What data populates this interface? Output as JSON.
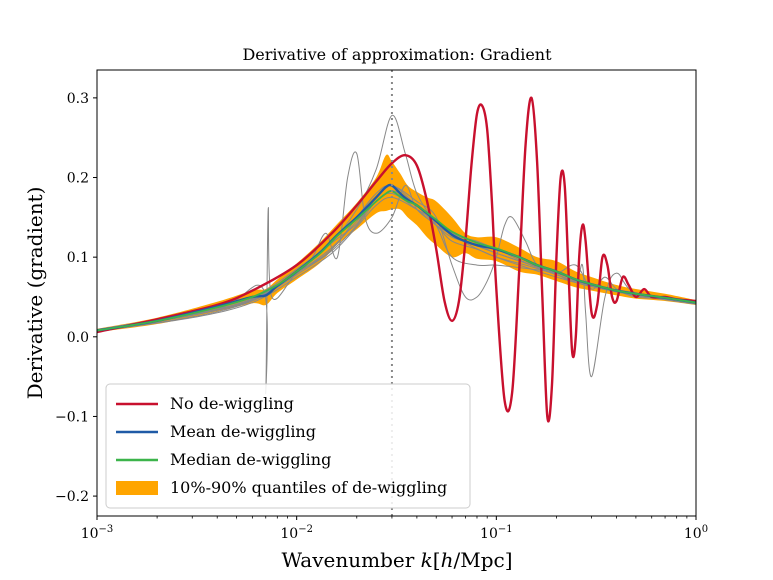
{
  "chart_data": {
    "type": "line",
    "title": "Derivative of approximation: Gradient",
    "xlabel": "Wavenumber k[h/Mpc]",
    "ylabel": "Derivative (gradient)",
    "xscale": "log",
    "xlim": [
      0.001,
      1.0
    ],
    "ylim": [
      -0.225,
      0.335
    ],
    "xticks": [
      {
        "value": 0.001,
        "base": "10",
        "exp": "−3"
      },
      {
        "value": 0.01,
        "base": "10",
        "exp": "−2"
      },
      {
        "value": 0.1,
        "base": "10",
        "exp": "−1"
      },
      {
        "value": 1.0,
        "base": "10",
        "exp": "0"
      }
    ],
    "yticks": [
      {
        "value": -0.2,
        "label": "−0.2"
      },
      {
        "value": -0.1,
        "label": "−0.1"
      },
      {
        "value": 0.0,
        "label": "0.0"
      },
      {
        "value": 0.1,
        "label": "0.1"
      },
      {
        "value": 0.2,
        "label": "0.2"
      },
      {
        "value": 0.3,
        "label": "0.3"
      }
    ],
    "vline": {
      "x": 0.03,
      "style": "dotted",
      "color": "#888888"
    },
    "legend": {
      "position": "lower-left",
      "entries": [
        {
          "label": "No de-wiggling",
          "color": "#c8102e",
          "kind": "line"
        },
        {
          "label": "Mean de-wiggling",
          "color": "#1f5aa6",
          "kind": "line"
        },
        {
          "label": "Median de-wiggling",
          "color": "#3cb44b",
          "kind": "line"
        },
        {
          "label": "10%-90% quantiles of de-wiggling",
          "color": "#ffa500",
          "kind": "patch"
        }
      ]
    },
    "series": [
      {
        "name": "No de-wiggling",
        "color": "#c8102e",
        "x": [
          0.001,
          0.002,
          0.004,
          0.006,
          0.01,
          0.015,
          0.02,
          0.025,
          0.03,
          0.035,
          0.04,
          0.045,
          0.05,
          0.055,
          0.06,
          0.065,
          0.07,
          0.075,
          0.08,
          0.085,
          0.09,
          0.095,
          0.1,
          0.11,
          0.12,
          0.13,
          0.14,
          0.15,
          0.16,
          0.17,
          0.18,
          0.19,
          0.2,
          0.21,
          0.22,
          0.23,
          0.24,
          0.25,
          0.26,
          0.27,
          0.28,
          0.3,
          0.32,
          0.34,
          0.36,
          0.38,
          0.4,
          0.43,
          0.46,
          0.5,
          0.55,
          0.6,
          0.7,
          0.8,
          1.0
        ],
        "y": [
          0.006,
          0.022,
          0.04,
          0.058,
          0.09,
          0.13,
          0.165,
          0.195,
          0.218,
          0.228,
          0.215,
          0.17,
          0.11,
          0.045,
          0.02,
          0.045,
          0.12,
          0.215,
          0.28,
          0.29,
          0.26,
          0.17,
          0.06,
          -0.08,
          -0.07,
          0.08,
          0.24,
          0.3,
          0.22,
          0.05,
          -0.1,
          -0.06,
          0.1,
          0.2,
          0.19,
          0.08,
          -0.02,
          0.0,
          0.1,
          0.14,
          0.12,
          0.03,
          0.04,
          0.1,
          0.09,
          0.05,
          0.045,
          0.075,
          0.065,
          0.05,
          0.06,
          0.05,
          0.05,
          0.047,
          0.045
        ]
      },
      {
        "name": "Mean de-wiggling",
        "color": "#1f5aa6",
        "x": [
          0.001,
          0.002,
          0.004,
          0.006,
          0.007,
          0.008,
          0.01,
          0.013,
          0.016,
          0.02,
          0.025,
          0.028,
          0.03,
          0.033,
          0.036,
          0.04,
          0.045,
          0.05,
          0.06,
          0.07,
          0.08,
          0.1,
          0.13,
          0.16,
          0.2,
          0.25,
          0.3,
          0.4,
          0.5,
          0.7,
          1.0
        ],
        "y": [
          0.008,
          0.02,
          0.038,
          0.05,
          0.052,
          0.064,
          0.082,
          0.105,
          0.128,
          0.15,
          0.175,
          0.188,
          0.19,
          0.18,
          0.172,
          0.165,
          0.155,
          0.145,
          0.128,
          0.12,
          0.115,
          0.11,
          0.1,
          0.09,
          0.082,
          0.072,
          0.066,
          0.058,
          0.054,
          0.049,
          0.043
        ]
      },
      {
        "name": "Median de-wiggling",
        "color": "#3cb44b",
        "x": [
          0.001,
          0.002,
          0.004,
          0.006,
          0.008,
          0.01,
          0.013,
          0.016,
          0.02,
          0.025,
          0.028,
          0.03,
          0.033,
          0.036,
          0.04,
          0.05,
          0.06,
          0.08,
          0.1,
          0.13,
          0.16,
          0.2,
          0.25,
          0.3,
          0.4,
          0.5,
          0.7,
          1.0
        ],
        "y": [
          0.008,
          0.02,
          0.037,
          0.05,
          0.065,
          0.082,
          0.104,
          0.127,
          0.148,
          0.17,
          0.18,
          0.183,
          0.176,
          0.17,
          0.165,
          0.147,
          0.132,
          0.118,
          0.111,
          0.1,
          0.09,
          0.082,
          0.072,
          0.066,
          0.058,
          0.054,
          0.049,
          0.043
        ]
      }
    ],
    "band": {
      "name": "10%-90% quantiles of de-wiggling",
      "color": "#ffa500",
      "x": [
        0.001,
        0.002,
        0.004,
        0.006,
        0.007,
        0.008,
        0.01,
        0.013,
        0.016,
        0.02,
        0.025,
        0.028,
        0.03,
        0.033,
        0.036,
        0.04,
        0.045,
        0.05,
        0.06,
        0.07,
        0.08,
        0.1,
        0.13,
        0.16,
        0.2,
        0.25,
        0.3,
        0.4,
        0.5,
        0.7,
        1.0
      ],
      "lower": [
        0.006,
        0.016,
        0.032,
        0.042,
        0.04,
        0.055,
        0.072,
        0.092,
        0.116,
        0.135,
        0.155,
        0.158,
        0.16,
        0.16,
        0.15,
        0.14,
        0.125,
        0.115,
        0.1,
        0.105,
        0.098,
        0.095,
        0.082,
        0.078,
        0.07,
        0.062,
        0.058,
        0.052,
        0.048,
        0.045,
        0.04
      ],
      "upper": [
        0.01,
        0.024,
        0.044,
        0.058,
        0.06,
        0.072,
        0.092,
        0.118,
        0.142,
        0.168,
        0.2,
        0.228,
        0.22,
        0.205,
        0.19,
        0.182,
        0.175,
        0.17,
        0.15,
        0.13,
        0.125,
        0.125,
        0.112,
        0.1,
        0.095,
        0.082,
        0.075,
        0.065,
        0.06,
        0.054,
        0.046
      ]
    },
    "realizations_color": "#888888",
    "realizations": [
      {
        "x": [
          0.001,
          0.003,
          0.006,
          0.01,
          0.015,
          0.02,
          0.025,
          0.03,
          0.035,
          0.04,
          0.05,
          0.06,
          0.08,
          0.1,
          0.15,
          0.2,
          0.3,
          0.5,
          1.0
        ],
        "y": [
          0.009,
          0.03,
          0.05,
          0.085,
          0.12,
          0.16,
          0.21,
          0.278,
          0.23,
          0.18,
          0.14,
          0.1,
          0.09,
          0.09,
          0.085,
          0.08,
          0.065,
          0.055,
          0.043
        ]
      },
      {
        "x": [
          0.001,
          0.003,
          0.006,
          0.01,
          0.015,
          0.02,
          0.025,
          0.03,
          0.035,
          0.04,
          0.05,
          0.06,
          0.08,
          0.1,
          0.15,
          0.2,
          0.3,
          0.5,
          1.0
        ],
        "y": [
          0.007,
          0.025,
          0.045,
          0.078,
          0.108,
          0.14,
          0.17,
          0.183,
          0.175,
          0.165,
          0.14,
          0.125,
          0.115,
          0.105,
          0.09,
          0.078,
          0.064,
          0.053,
          0.042
        ]
      },
      {
        "x": [
          0.001,
          0.004,
          0.0068,
          0.007,
          0.0072,
          0.0075,
          0.01,
          0.015,
          0.02,
          0.025,
          0.03,
          0.04,
          0.06,
          0.08,
          0.1,
          0.15,
          0.2,
          0.3,
          0.5,
          1.0
        ],
        "y": [
          0.007,
          0.035,
          0.06,
          -0.07,
          0.16,
          0.05,
          0.08,
          0.118,
          0.142,
          0.175,
          0.19,
          0.165,
          0.13,
          0.12,
          0.11,
          0.09,
          0.08,
          0.066,
          0.054,
          0.043
        ]
      },
      {
        "x": [
          0.001,
          0.003,
          0.006,
          0.01,
          0.012,
          0.014,
          0.016,
          0.018,
          0.02,
          0.022,
          0.025,
          0.03,
          0.035,
          0.04,
          0.05,
          0.06,
          0.08,
          0.1,
          0.15,
          0.2,
          0.3,
          0.5,
          1.0
        ],
        "y": [
          0.008,
          0.028,
          0.048,
          0.08,
          0.1,
          0.13,
          0.1,
          0.2,
          0.23,
          0.15,
          0.13,
          0.15,
          0.19,
          0.16,
          0.14,
          0.12,
          0.11,
          0.1,
          0.088,
          0.078,
          0.064,
          0.052,
          0.042
        ]
      },
      {
        "x": [
          0.001,
          0.003,
          0.006,
          0.01,
          0.015,
          0.02,
          0.025,
          0.03,
          0.04,
          0.05,
          0.06,
          0.07,
          0.08,
          0.09,
          0.1,
          0.11,
          0.12,
          0.14,
          0.16,
          0.2,
          0.25,
          0.3,
          0.35,
          0.4,
          0.5,
          0.7,
          1.0
        ],
        "y": [
          0.008,
          0.027,
          0.046,
          0.08,
          0.11,
          0.15,
          0.18,
          0.19,
          0.17,
          0.15,
          0.09,
          0.05,
          0.05,
          0.07,
          0.1,
          0.14,
          0.15,
          0.12,
          0.09,
          0.08,
          0.09,
          0.06,
          0.075,
          0.06,
          0.05,
          0.048,
          0.043
        ]
      },
      {
        "x": [
          0.001,
          0.003,
          0.006,
          0.01,
          0.015,
          0.02,
          0.025,
          0.03,
          0.04,
          0.05,
          0.07,
          0.1,
          0.15,
          0.2,
          0.25,
          0.27,
          0.28,
          0.3,
          0.35,
          0.4,
          0.5,
          1.0
        ],
        "y": [
          0.008,
          0.027,
          0.047,
          0.08,
          0.112,
          0.145,
          0.17,
          0.18,
          0.16,
          0.14,
          0.12,
          0.105,
          0.09,
          0.078,
          0.07,
          0.09,
          0.03,
          -0.05,
          0.05,
          0.08,
          0.055,
          0.043
        ]
      },
      {
        "x": [
          0.001,
          0.003,
          0.006,
          0.01,
          0.015,
          0.02,
          0.025,
          0.03,
          0.04,
          0.05,
          0.07,
          0.1,
          0.15,
          0.2,
          0.3,
          0.5,
          1.0
        ],
        "y": [
          0.007,
          0.024,
          0.043,
          0.075,
          0.105,
          0.138,
          0.165,
          0.175,
          0.16,
          0.145,
          0.118,
          0.1,
          0.085,
          0.075,
          0.063,
          0.052,
          0.041
        ]
      }
    ]
  }
}
